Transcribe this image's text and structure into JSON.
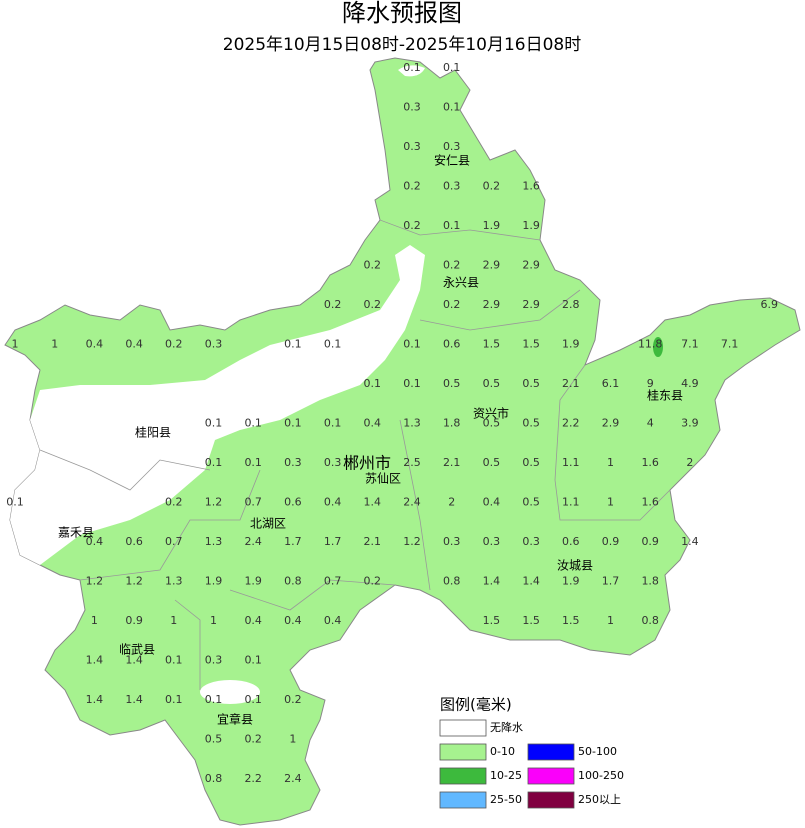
{
  "title": "降水预报图",
  "subtitle": "2025年10月15日08时-2025年10月16日08时",
  "precipitation": [
    0.1,
    0.1,
    0.3,
    0.1,
    0.3,
    0.3,
    0.2,
    0.3,
    0.2,
    1.6,
    0.2,
    0.1,
    1.9,
    1.9,
    0.2,
    0.2,
    2.9,
    2.9,
    0.2,
    0.2,
    0.2,
    2.9,
    2.9,
    2.8,
    6.9,
    1,
    1,
    0.4,
    0.4,
    0.2,
    0.3,
    0.1,
    0.1,
    0.1,
    0.6,
    1.5,
    1.5,
    1.9,
    11.8,
    7.1,
    7.1,
    0.1,
    0.1,
    0.5,
    0.5,
    0.5,
    2.1,
    6.1,
    9,
    4.9,
    0.1,
    0.1,
    0.1,
    0.1,
    0.4,
    1.3,
    1.8,
    0.5,
    0.5,
    2.2,
    2.9,
    4,
    3.9,
    0.1,
    0.1,
    0.3,
    0.3,
    2.5,
    2.1,
    0.5,
    0.5,
    1.1,
    1,
    1.6,
    2,
    0.1,
    0.2,
    1.2,
    0.7,
    0.6,
    0.4,
    1.4,
    2.4,
    2,
    0.4,
    0.5,
    1.1,
    1,
    1.6,
    0.4,
    0.6,
    0.7,
    1.3,
    2.4,
    1.7,
    1.7,
    2.1,
    1.2,
    0.3,
    0.3,
    0.3,
    0.6,
    0.9,
    0.9,
    1.4,
    1.2,
    1.2,
    1.3,
    1.9,
    1.9,
    0.8,
    0.7,
    0.2,
    0.8,
    1.4,
    1.4,
    1.9,
    1.7,
    1.8,
    1,
    0.9,
    1,
    1,
    0.4,
    0.4,
    0.4,
    1.5,
    1.5,
    1.5,
    1,
    0.8,
    1.4,
    1.4,
    0.1,
    0.3,
    0.1,
    1.4,
    1.4,
    0.1,
    0.1,
    0.1,
    0.2,
    0.5,
    0.2,
    1,
    0.8,
    2.2,
    2.4
  ],
  "places": [
    "安仁县",
    "永兴县",
    "资兴市",
    "桂东县",
    "桂阳县",
    "郴州市",
    "苏仙区",
    "北湖区",
    "嘉禾县",
    "汝城县",
    "临武县",
    "宜章县"
  ],
  "legend": {
    "title": "图例(毫米)",
    "items": [
      {
        "label": "无降水",
        "color": "#ffffff"
      },
      {
        "label": "0-10",
        "color": "#a6f28f"
      },
      {
        "label": "10-25",
        "color": "#3dba3d"
      },
      {
        "label": "25-50",
        "color": "#61b8ff"
      },
      {
        "label": "50-100",
        "color": "#0000fe"
      },
      {
        "label": "100-250",
        "color": "#fa00fa"
      },
      {
        "label": "250以上",
        "color": "#800040"
      }
    ]
  }
}
